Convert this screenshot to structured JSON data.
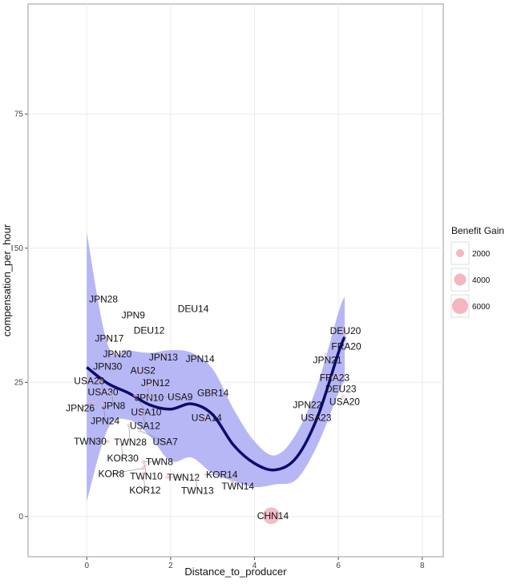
{
  "chart_data": {
    "type": "scatter",
    "title": "",
    "xlabel": "Distance_to_producer",
    "ylabel": "compensation_per_hour",
    "xlim": [
      -1.4,
      8.5
    ],
    "ylim": [
      -7.5,
      95.5
    ],
    "xticks": [
      0,
      2,
      4,
      6,
      8
    ],
    "yticks": [
      0,
      25,
      50,
      75
    ],
    "grid": true,
    "legend": {
      "title": "Benefit Gain",
      "position": "right",
      "entries": [
        "2000",
        "4000",
        "6000"
      ],
      "color": "#f4b6c0"
    },
    "smooth_color": "#0d0b6e",
    "band_color": "#aaaaf5",
    "points": [
      {
        "label": "JPN28",
        "x": 0.36,
        "y": 40.5
      },
      {
        "label": "JPN9",
        "x": 1.07,
        "y": 37.5
      },
      {
        "label": "DEU14",
        "x": 2.5,
        "y": 38.7
      },
      {
        "label": "DEU12",
        "x": 1.45,
        "y": 34.7
      },
      {
        "label": "JPN17",
        "x": 0.5,
        "y": 33.2
      },
      {
        "label": "JPN20",
        "x": 0.69,
        "y": 30.3
      },
      {
        "label": "JPN30",
        "x": 0.46,
        "y": 29.0
      },
      {
        "label": "JPN13",
        "x": 1.79,
        "y": 29.7
      },
      {
        "label": "JPN14",
        "x": 2.55,
        "y": 29.4
      },
      {
        "label": "AUS2",
        "x": 1.3,
        "y": 27.2
      },
      {
        "label": "USA28",
        "x": 0.02,
        "y": 25.3
      },
      {
        "label": "USA30",
        "x": 0.35,
        "y": 25.3
      },
      {
        "label": "JPN12",
        "x": 1.6,
        "y": 24.9
      },
      {
        "label": "JPN10",
        "x": 1.45,
        "y": 24.2
      },
      {
        "label": "GBR14",
        "x": 2.97,
        "y": 23.0
      },
      {
        "label": "JPN8",
        "x": 0.6,
        "y": 22.7
      },
      {
        "label": "USA10",
        "x": 1.15,
        "y": 22.6
      },
      {
        "label": "USA9",
        "x": 1.5,
        "y": 22.3
      },
      {
        "label": "JPN26",
        "x": 0.15,
        "y": 21.2
      },
      {
        "label": "JPN24",
        "x": 0.4,
        "y": 20.9
      },
      {
        "label": "USA12",
        "x": 1.35,
        "y": 19.0
      },
      {
        "label": "USA14",
        "x": 2.82,
        "y": 18.4
      },
      {
        "label": "TWN28",
        "x": 1.0,
        "y": 17.0
      },
      {
        "label": "USA7",
        "x": 1.26,
        "y": 16.0
      },
      {
        "label": "TWN30",
        "x": 0.5,
        "y": 14.0
      },
      {
        "label": "KOR30",
        "x": 0.82,
        "y": 14.0
      },
      {
        "label": "TWN8",
        "x": 1.35,
        "y": 10.2
      },
      {
        "label": "TWN10",
        "x": 1.38,
        "y": 9.6
      },
      {
        "label": "KOR8",
        "x": 1.35,
        "y": 9.0
      },
      {
        "label": "KOR12",
        "x": 1.35,
        "y": 8.0
      },
      {
        "label": "TWN12",
        "x": 1.92,
        "y": 7.3
      },
      {
        "label": "TWN13",
        "x": 2.6,
        "y": 6.9
      },
      {
        "label": "KOR14",
        "x": 2.84,
        "y": 7.8
      },
      {
        "label": "TWN14",
        "x": 3.45,
        "y": 6.7
      },
      {
        "label": "CHN14",
        "x": 4.4,
        "y": 0.15,
        "gain": 6000
      },
      {
        "label": "DEU20",
        "x": 6.13,
        "y": 34.6
      },
      {
        "label": "FRA20",
        "x": 6.15,
        "y": 33.8
      },
      {
        "label": "JPN21",
        "x": 5.7,
        "y": 30.2
      },
      {
        "label": "FRA23",
        "x": 5.87,
        "y": 25.9
      },
      {
        "label": "DEU23",
        "x": 6.02,
        "y": 25.9
      },
      {
        "label": "USA20",
        "x": 6.11,
        "y": 22.4
      },
      {
        "label": "JPN22",
        "x": 5.45,
        "y": 20.8
      },
      {
        "label": "USA23",
        "x": 5.43,
        "y": 18.4
      }
    ],
    "smooth": [
      {
        "x": 0,
        "y": 27.8,
        "lo": 2.8,
        "hi": 52.9
      },
      {
        "x": 0.5,
        "y": 24.8,
        "lo": 16.3,
        "hi": 32.0
      },
      {
        "x": 1,
        "y": 23.0,
        "lo": 18.0,
        "hi": 31.0
      },
      {
        "x": 1.5,
        "y": 20.8,
        "lo": 15.0,
        "hi": 30.5
      },
      {
        "x": 2,
        "y": 20.0,
        "lo": 10.3,
        "hi": 31.0
      },
      {
        "x": 2.5,
        "y": 21.0,
        "lo": 11.0,
        "hi": 30.5
      },
      {
        "x": 3,
        "y": 19.0,
        "lo": 8.0,
        "hi": 27.5
      },
      {
        "x": 3.5,
        "y": 13.3,
        "lo": 6.6,
        "hi": 20.0
      },
      {
        "x": 4,
        "y": 9.9,
        "lo": 5.5,
        "hi": 14.0
      },
      {
        "x": 4.5,
        "y": 8.7,
        "lo": 6.0,
        "hi": 11.4
      },
      {
        "x": 5,
        "y": 11.0,
        "lo": 6.9,
        "hi": 15.5
      },
      {
        "x": 5.5,
        "y": 18.5,
        "lo": 13.3,
        "hi": 24.5
      },
      {
        "x": 6,
        "y": 30.5,
        "lo": 23.0,
        "hi": 38.0
      },
      {
        "x": 6.15,
        "y": 33.5,
        "lo": 25.3,
        "hi": 41.0
      }
    ]
  }
}
